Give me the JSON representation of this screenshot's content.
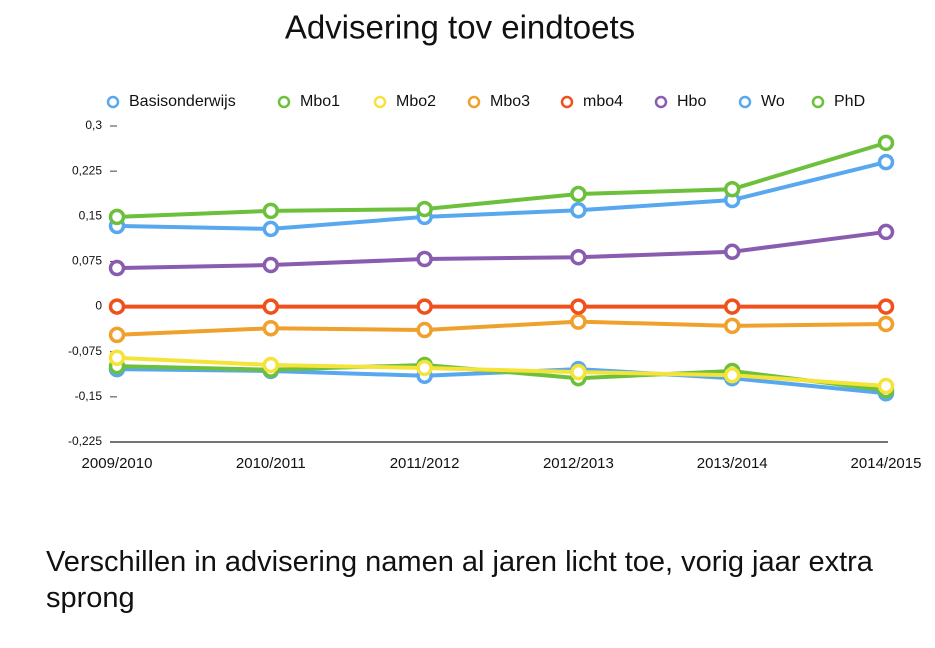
{
  "chart_data": {
    "type": "line",
    "title": "Advisering tov eindtoets",
    "subtitle": "Verschillen in advisering namen al jaren licht toe, vorig jaar extra sprong",
    "categories": [
      "2009/2010",
      "2010/2011",
      "2011/2012",
      "2012/2013",
      "2013/2014",
      "2014/2015"
    ],
    "series": [
      {
        "name": "Basisonderwijs",
        "color": "#58a8ef",
        "values": [
          -0.104,
          -0.107,
          -0.115,
          -0.104,
          -0.119,
          -0.144
        ]
      },
      {
        "name": "Mbo1",
        "color": "#6cc03c",
        "values": [
          -0.099,
          -0.105,
          -0.097,
          -0.119,
          -0.107,
          -0.139
        ]
      },
      {
        "name": "Mbo2",
        "color": "#f5e33a",
        "values": [
          -0.085,
          -0.097,
          -0.102,
          -0.109,
          -0.114,
          -0.132
        ]
      },
      {
        "name": "Mbo3",
        "color": "#f0a02c",
        "values": [
          -0.047,
          -0.036,
          -0.039,
          -0.025,
          -0.032,
          -0.029
        ]
      },
      {
        "name": "mbo4",
        "color": "#f0501c",
        "values": [
          0,
          0,
          0,
          0,
          0,
          0
        ]
      },
      {
        "name": "Hbo",
        "color": "#8a5cb0",
        "values": [
          0.064,
          0.069,
          0.079,
          0.082,
          0.091,
          0.124
        ]
      },
      {
        "name": "Wo",
        "color": "#58a8ef",
        "values": [
          0.134,
          0.129,
          0.149,
          0.16,
          0.177,
          0.24
        ]
      },
      {
        "name": "PhD",
        "color": "#6cc03c",
        "values": [
          0.149,
          0.159,
          0.162,
          0.187,
          0.195,
          0.272
        ]
      }
    ],
    "ylim": [
      -0.225,
      0.3
    ],
    "yticks": [
      {
        "value": 0.3,
        "label": "0,3"
      },
      {
        "value": 0.225,
        "label": "0,225"
      },
      {
        "value": 0.15,
        "label": "0,15"
      },
      {
        "value": 0.075,
        "label": "0,075"
      },
      0,
      {
        "value": -0.075,
        "label": "-0,075"
      },
      {
        "value": -0.15,
        "label": "-0,15"
      },
      {
        "value": -0.225,
        "label": "-0,225"
      }
    ],
    "legend": "top"
  }
}
